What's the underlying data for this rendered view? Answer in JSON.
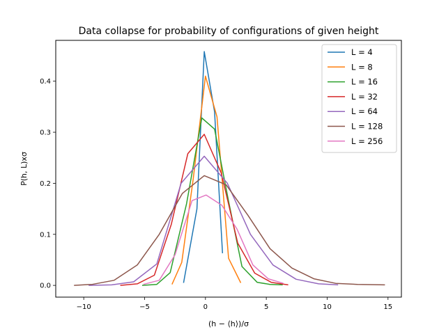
{
  "chart_data": {
    "type": "line",
    "title": "Data collapse for probability of configurations of given height",
    "xlabel": "(h − ⟨h⟩)/σ",
    "ylabel": "P(h, L)xσ",
    "xlim": [
      -12.3,
      16.1
    ],
    "ylim": [
      -0.023,
      0.48
    ],
    "xticks": [
      -10,
      -5,
      0,
      5,
      10,
      15
    ],
    "yticks": [
      0.0,
      0.1,
      0.2,
      0.3,
      0.4
    ],
    "ytick_labels": [
      "0.0",
      "0.1",
      "0.2",
      "0.3",
      "0.4"
    ],
    "grid": false,
    "legend_position": "upper-right",
    "series": [
      {
        "name": "L = 4",
        "color": "#1f77b4",
        "x": [
          -1.8,
          -0.7,
          -0.1,
          0.75,
          1.4
        ],
        "y": [
          0.005,
          0.15,
          0.458,
          0.34,
          0.063
        ]
      },
      {
        "name": "L = 8",
        "color": "#ff7f0e",
        "x": [
          -2.75,
          -1.95,
          -1.0,
          0.0,
          0.95,
          1.9,
          2.9
        ],
        "y": [
          0.002,
          0.045,
          0.21,
          0.41,
          0.33,
          0.053,
          0.005
        ]
      },
      {
        "name": "L = 16",
        "color": "#2ca02c",
        "x": [
          -5.2,
          -4.0,
          -2.9,
          -1.55,
          -0.3,
          0.75,
          1.9,
          3.0,
          4.25,
          5.3,
          6.35
        ],
        "y": [
          0.0,
          0.002,
          0.025,
          0.16,
          0.328,
          0.306,
          0.165,
          0.037,
          0.006,
          0.002,
          0.001
        ]
      },
      {
        "name": "L = 32",
        "color": "#d62728",
        "x": [
          -7.0,
          -5.6,
          -4.2,
          -2.8,
          -1.45,
          -0.1,
          1.3,
          2.65,
          4.05,
          5.4,
          6.8
        ],
        "y": [
          0.0,
          0.003,
          0.02,
          0.12,
          0.258,
          0.296,
          0.22,
          0.083,
          0.024,
          0.006,
          0.001
        ]
      },
      {
        "name": "L = 64",
        "color": "#9467bd",
        "x": [
          -9.6,
          -7.7,
          -5.9,
          -4.0,
          -2.0,
          -0.1,
          1.8,
          3.7,
          5.55,
          7.45,
          9.3,
          10.9
        ],
        "y": [
          0.0,
          0.001,
          0.007,
          0.042,
          0.2,
          0.253,
          0.2,
          0.1,
          0.04,
          0.012,
          0.003,
          0.001
        ]
      },
      {
        "name": "L = 128",
        "color": "#8c564b",
        "x": [
          -10.8,
          -9.3,
          -7.5,
          -5.6,
          -3.8,
          -1.9,
          -0.1,
          1.7,
          3.5,
          5.3,
          7.1,
          8.9,
          10.7,
          12.5,
          14.75
        ],
        "y": [
          0.0,
          0.002,
          0.01,
          0.04,
          0.1,
          0.18,
          0.215,
          0.197,
          0.137,
          0.072,
          0.034,
          0.013,
          0.004,
          0.002,
          0.001
        ]
      },
      {
        "name": "L = 256",
        "color": "#e377c2",
        "x": [
          -5.1,
          -3.8,
          -2.5,
          -1.1,
          0.05,
          1.35,
          2.6,
          3.9,
          5.15,
          6.4
        ],
        "y": [
          0.002,
          0.01,
          0.06,
          0.166,
          0.177,
          0.157,
          0.11,
          0.04,
          0.013,
          0.004
        ]
      }
    ]
  }
}
